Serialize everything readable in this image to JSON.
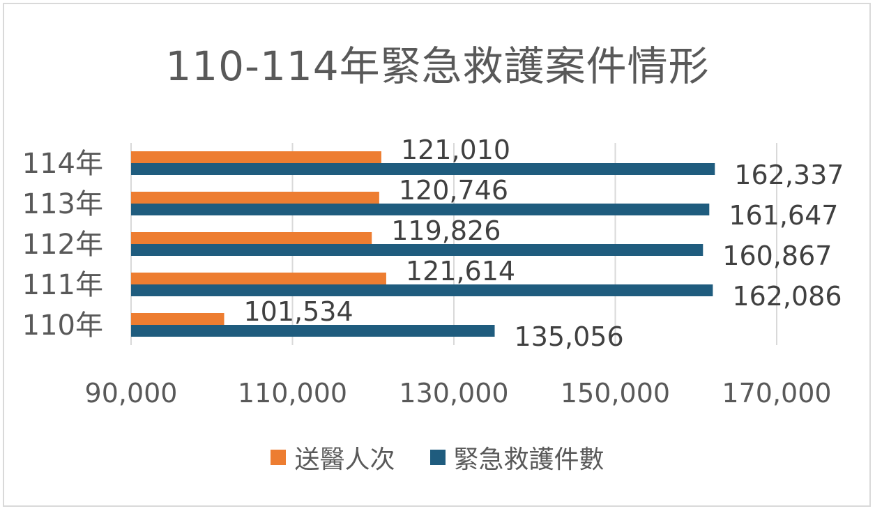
{
  "chart_data": {
    "type": "bar",
    "orientation": "horizontal",
    "title": "110-114年緊急救護案件情形",
    "categories": [
      "110年",
      "111年",
      "112年",
      "113年",
      "114年"
    ],
    "series": [
      {
        "name": "送醫人次",
        "color": "#ED7D31",
        "values": [
          101534,
          121614,
          119826,
          120746,
          121010
        ],
        "labels": [
          "101,534",
          "121,614",
          "119,826",
          "120,746",
          "121,010"
        ]
      },
      {
        "name": "緊急救護件數",
        "color": "#1F5C7E",
        "values": [
          135056,
          162086,
          160867,
          161647,
          162337
        ],
        "labels": [
          "135,056",
          "162,086",
          "160,867",
          "161,647",
          "162,337"
        ]
      }
    ],
    "xlim": [
      90000,
      170000
    ],
    "xticks": [
      90000,
      110000,
      130000,
      150000,
      170000
    ],
    "xtick_labels": [
      "90,000",
      "110,000",
      "130,000",
      "150,000",
      "170,000"
    ],
    "grid": true,
    "legend_position": "bottom"
  }
}
